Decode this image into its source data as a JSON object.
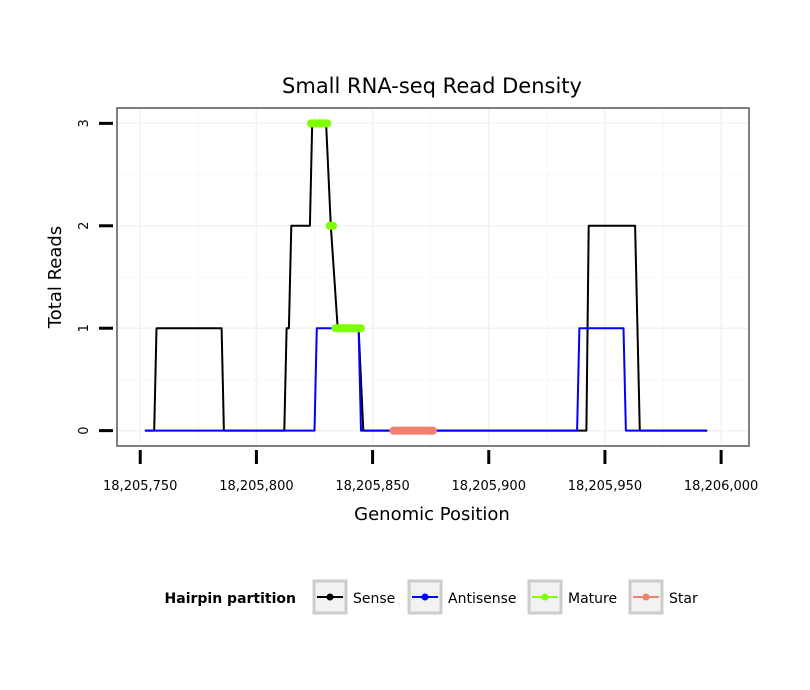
{
  "chart_data": {
    "type": "line",
    "title": "Small RNA-seq Read Density",
    "xlabel": "Genomic Position",
    "ylabel": "Total Reads",
    "xlim": [
      18205740,
      18206012
    ],
    "ylim": [
      -0.15,
      3.15
    ],
    "x_ticks": [
      18205750,
      18205800,
      18205850,
      18205900,
      18205950,
      18206000
    ],
    "x_tick_labels": [
      "18,205,750",
      "18,205,800",
      "18,205,850",
      "18,205,900",
      "18,205,950",
      "18,206,000"
    ],
    "y_ticks": [
      0,
      1,
      2,
      3
    ],
    "y_tick_labels": [
      "0",
      "1",
      "2",
      "3"
    ],
    "grid": true,
    "legend_title": "Hairpin partition",
    "legend_position": "bottom",
    "series": [
      {
        "name": "Sense",
        "color": "#000000",
        "width": 2,
        "x": [
          18205752,
          18205756,
          18205757,
          18205785,
          18205786,
          18205812,
          18205813,
          18205814,
          18205815,
          18205816,
          18205823,
          18205824,
          18205830,
          18205832,
          18205835,
          18205844,
          18205846,
          18205937,
          18205942,
          18205943,
          18205963,
          18205965,
          18205994
        ],
        "y": [
          0,
          0,
          1,
          1,
          0,
          0,
          1,
          1,
          2,
          2,
          2,
          3,
          3,
          2,
          1,
          1,
          0,
          0,
          0,
          2,
          2,
          0,
          0
        ]
      },
      {
        "name": "Antisense",
        "color": "#0000ff",
        "width": 2,
        "x": [
          18205752,
          18205825,
          18205826,
          18205844,
          18205845,
          18205938,
          18205939,
          18205958,
          18205959,
          18205994
        ],
        "y": [
          0,
          0,
          1,
          1,
          0,
          0,
          1,
          1,
          0,
          0
        ]
      },
      {
        "name": "Mature",
        "color": "#7fff00",
        "width": 8,
        "segments": [
          {
            "x": [
              18205823.5,
              18205830.5
            ],
            "y": [
              3,
              3
            ]
          },
          {
            "x": [
              18205831.5,
              18205833
            ],
            "y": [
              2,
              2
            ]
          },
          {
            "x": [
              18205834,
              18205845
            ],
            "y": [
              1,
              1
            ]
          }
        ]
      },
      {
        "name": "Star",
        "color": "#f08070",
        "width": 8,
        "segments": [
          {
            "x": [
              18205859,
              18205876
            ],
            "y": [
              0,
              0
            ]
          }
        ]
      }
    ]
  },
  "legend_items": [
    {
      "name": "Sense",
      "color": "#000000"
    },
    {
      "name": "Antisense",
      "color": "#0000ff"
    },
    {
      "name": "Mature",
      "color": "#7fff00"
    },
    {
      "name": "Star",
      "color": "#f08070"
    }
  ]
}
